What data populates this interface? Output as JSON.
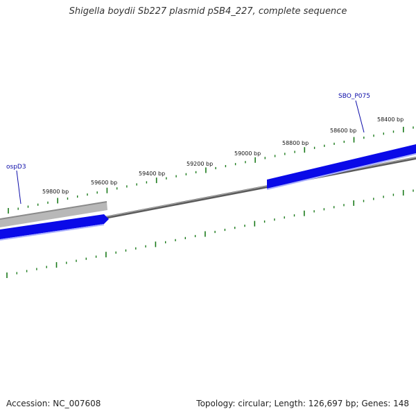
{
  "title": "Shigella boydii Sb227 plasmid pSB4_227, complete sequence",
  "footer": {
    "accession": "Accession: NC_007608",
    "summary": "Topology: circular; Length: 126,697 bp; Genes: 148"
  },
  "ticks": [
    {
      "label": "58400 bp"
    },
    {
      "label": "58600 bp"
    },
    {
      "label": "58800 bp"
    },
    {
      "label": "59000 bp"
    },
    {
      "label": "59200 bp"
    },
    {
      "label": "59400 bp"
    },
    {
      "label": "59600 bp"
    },
    {
      "label": "59800 bp"
    }
  ],
  "genes": [
    {
      "label": "SBO_P075"
    },
    {
      "label": "ospD3"
    }
  ],
  "colors": {
    "forward_gene": "#0a0ae8",
    "gene_highlight": "#aab0ff",
    "grey_feature": "#b8b8b8",
    "backbone": "#808080",
    "tick": "#1a7a1a",
    "gene_label": "#0a0aa8"
  }
}
